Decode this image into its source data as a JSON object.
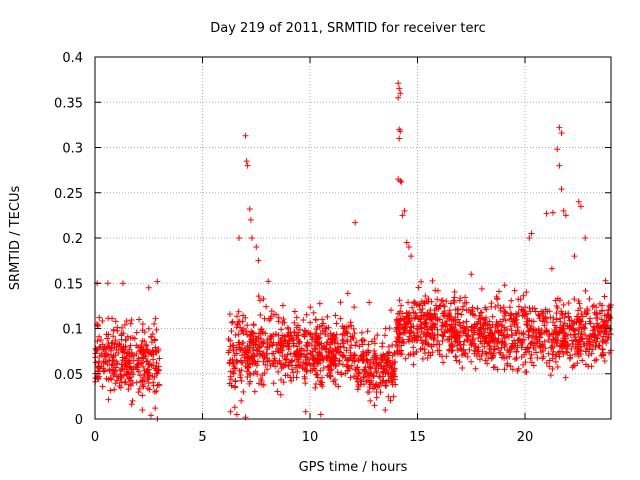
{
  "chart_data": {
    "type": "scatter",
    "title": "Day 219 of 2011, SRMTID for receiver terc",
    "xlabel": "GPS time / hours",
    "ylabel": "SRMTID / TECUs",
    "xlim": [
      0,
      24
    ],
    "ylim": [
      0,
      0.4
    ],
    "x_ticks": [
      0,
      5,
      10,
      15,
      20
    ],
    "x_tick_labels": [
      "0",
      "5",
      "10",
      "15",
      "20"
    ],
    "y_ticks": [
      0,
      0.05,
      0.1,
      0.15,
      0.2,
      0.25,
      0.3,
      0.35,
      0.4
    ],
    "y_tick_labels": [
      "0",
      "0.05",
      "0.1",
      "0.15",
      "0.2",
      "0.25",
      "0.3",
      "0.35",
      "0.4"
    ],
    "grid": true,
    "marker": "+",
    "colors": {
      "points": "#ff0000",
      "axes": "#000000",
      "grid": "#b0b0b0",
      "background": "#ffffff"
    },
    "series": [
      {
        "name": "SRMTID",
        "segments": [
          {
            "x_range": [
              0.0,
              3.0
            ],
            "typical_range": [
              0.02,
              0.1
            ],
            "points": 330
          },
          {
            "x_range": [
              6.2,
              12.0
            ],
            "typical_range": [
              0.03,
              0.11
            ],
            "points": 650
          },
          {
            "x_range": [
              12.0,
              14.0
            ],
            "typical_range": [
              0.02,
              0.09
            ],
            "points": 220
          },
          {
            "x_range": [
              14.0,
              17.0
            ],
            "typical_range": [
              0.06,
              0.13
            ],
            "points": 360
          },
          {
            "x_range": [
              17.0,
              24.0
            ],
            "typical_range": [
              0.05,
              0.13
            ],
            "points": 760
          }
        ],
        "highlight_points": [
          [
            7.0,
            0.313
          ],
          [
            7.05,
            0.285
          ],
          [
            7.1,
            0.28
          ],
          [
            7.2,
            0.232
          ],
          [
            7.25,
            0.22
          ],
          [
            7.3,
            0.2
          ],
          [
            6.7,
            0.2
          ],
          [
            7.5,
            0.19
          ],
          [
            7.6,
            0.175
          ],
          [
            6.5,
            0.013
          ],
          [
            6.6,
            0.005
          ],
          [
            6.8,
            0.02
          ],
          [
            6.3,
            0.008
          ],
          [
            7.0,
            0.002
          ],
          [
            6.9,
            0.03
          ],
          [
            12.1,
            0.217
          ],
          [
            14.1,
            0.371
          ],
          [
            14.15,
            0.365
          ],
          [
            14.2,
            0.36
          ],
          [
            14.1,
            0.355
          ],
          [
            14.15,
            0.32
          ],
          [
            14.2,
            0.318
          ],
          [
            14.15,
            0.31
          ],
          [
            14.1,
            0.265
          ],
          [
            14.2,
            0.263
          ],
          [
            14.25,
            0.262
          ],
          [
            14.4,
            0.23
          ],
          [
            14.3,
            0.225
          ],
          [
            14.5,
            0.195
          ],
          [
            14.6,
            0.19
          ],
          [
            14.7,
            0.18
          ],
          [
            21.6,
            0.322
          ],
          [
            21.7,
            0.316
          ],
          [
            21.5,
            0.298
          ],
          [
            21.6,
            0.28
          ],
          [
            21.7,
            0.254
          ],
          [
            21.8,
            0.23
          ],
          [
            21.3,
            0.228
          ],
          [
            21.0,
            0.227
          ],
          [
            21.9,
            0.225
          ],
          [
            22.5,
            0.24
          ],
          [
            22.6,
            0.235
          ],
          [
            22.8,
            0.2
          ],
          [
            22.3,
            0.18
          ],
          [
            20.3,
            0.205
          ],
          [
            20.2,
            0.2
          ],
          [
            17.5,
            0.16
          ],
          [
            15.2,
            0.13
          ],
          [
            0.1,
            0.15
          ],
          [
            0.6,
            0.15
          ],
          [
            1.3,
            0.15
          ],
          [
            2.5,
            0.145
          ],
          [
            2.9,
            0.152
          ],
          [
            2.2,
            0.01
          ],
          [
            2.6,
            0.004
          ],
          [
            2.9,
            0.0
          ],
          [
            2.8,
            0.012
          ],
          [
            13.0,
            0.015
          ],
          [
            12.8,
            0.02
          ],
          [
            13.5,
            0.01
          ],
          [
            9.8,
            0.008
          ],
          [
            10.5,
            0.005
          ]
        ]
      }
    ]
  }
}
